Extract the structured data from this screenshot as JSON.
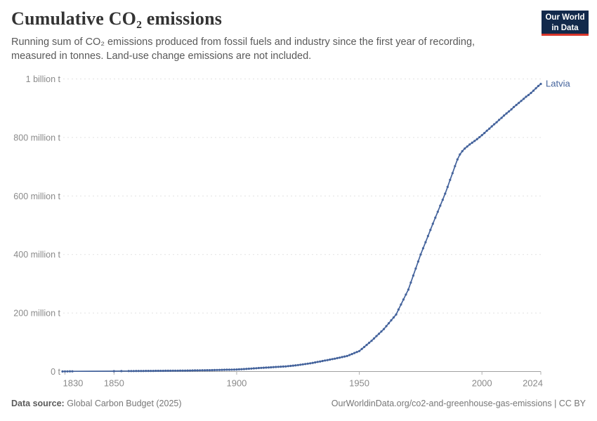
{
  "header": {
    "title": "Cumulative CO₂ emissions",
    "subtitle": "Running sum of CO₂ emissions produced from fossil fuels and industry since the first year of recording, measured in tonnes. Land-use change emissions are not included."
  },
  "logo": {
    "line1": "Our World",
    "line2": "in Data"
  },
  "footer": {
    "source_label": "Data source:",
    "source_value": "Global Carbon Budget (2025)",
    "link": "OurWorldinData.org/co2-and-greenhouse-gas-emissions | CC BY"
  },
  "colors": {
    "line": "#44639c",
    "entity_label": "#44639c",
    "grid": "#e2e2e2",
    "axis": "#a0a0a0",
    "tick": "#b0b0b0",
    "tick_label": "#8a8a8a",
    "logo_bg": "#12294b",
    "logo_red": "#d8352a"
  },
  "chart_data": {
    "type": "line",
    "title": "Cumulative CO₂ emissions",
    "unit": "tonnes",
    "value_unit_of_points": "million tonnes",
    "xlim": [
      1829,
      2024
    ],
    "ylim": [
      0,
      1000
    ],
    "grid": "horizontal dashed",
    "legend_position": "end-of-line label",
    "end_label": "Latvia",
    "xticks": [
      {
        "value": 1830,
        "label": "1830"
      },
      {
        "value": 1850,
        "label": "1850"
      },
      {
        "value": 1900,
        "label": "1900"
      },
      {
        "value": 1950,
        "label": "1950"
      },
      {
        "value": 2000,
        "label": "2000"
      },
      {
        "value": 2024,
        "label": "2024"
      }
    ],
    "yticks": [
      {
        "value": 0,
        "label": "0 t"
      },
      {
        "value": 200,
        "label": "200 million t"
      },
      {
        "value": 400,
        "label": "400 million t"
      },
      {
        "value": 600,
        "label": "600 million t"
      },
      {
        "value": 800,
        "label": "800 million t"
      },
      {
        "value": 1000,
        "label": "1 billion t"
      }
    ],
    "series": [
      {
        "name": "Latvia",
        "color": "#44639c",
        "points": [
          [
            1829,
            0.3
          ],
          [
            1830,
            0.45
          ],
          [
            1831,
            0.55
          ],
          [
            1832,
            0.7
          ],
          [
            1833,
            0.8
          ],
          [
            1850,
            1.2
          ],
          [
            1853,
            1.4
          ],
          [
            1856,
            1.6
          ],
          [
            1857,
            1.68
          ],
          [
            1858,
            1.75
          ],
          [
            1859,
            1.83
          ],
          [
            1860,
            1.9
          ],
          [
            1861,
            1.96
          ],
          [
            1862,
            2.02
          ],
          [
            1863,
            2.08
          ],
          [
            1864,
            2.14
          ],
          [
            1865,
            2.2
          ],
          [
            1866,
            2.26
          ],
          [
            1867,
            2.32
          ],
          [
            1868,
            2.38
          ],
          [
            1869,
            2.44
          ],
          [
            1870,
            2.5
          ],
          [
            1871,
            2.58
          ],
          [
            1872,
            2.66
          ],
          [
            1873,
            2.74
          ],
          [
            1874,
            2.82
          ],
          [
            1875,
            2.9
          ],
          [
            1876,
            2.98
          ],
          [
            1877,
            3.06
          ],
          [
            1878,
            3.14
          ],
          [
            1879,
            3.22
          ],
          [
            1880,
            3.3
          ],
          [
            1881,
            3.45
          ],
          [
            1882,
            3.6
          ],
          [
            1883,
            3.75
          ],
          [
            1884,
            3.9
          ],
          [
            1885,
            4.05
          ],
          [
            1886,
            4.2
          ],
          [
            1887,
            4.35
          ],
          [
            1888,
            4.5
          ],
          [
            1889,
            4.65
          ],
          [
            1890,
            4.8
          ],
          [
            1891,
            5.02
          ],
          [
            1892,
            5.24
          ],
          [
            1893,
            5.46
          ],
          [
            1894,
            5.68
          ],
          [
            1895,
            5.9
          ],
          [
            1896,
            6.12
          ],
          [
            1897,
            6.34
          ],
          [
            1898,
            6.56
          ],
          [
            1899,
            6.78
          ],
          [
            1900,
            7
          ],
          [
            1901,
            7.5
          ],
          [
            1902,
            8
          ],
          [
            1903,
            8.5
          ],
          [
            1904,
            9
          ],
          [
            1905,
            9.5
          ],
          [
            1906,
            10.1
          ],
          [
            1907,
            10.7
          ],
          [
            1908,
            11.3
          ],
          [
            1909,
            11.9
          ],
          [
            1910,
            12.5
          ],
          [
            1911,
            13
          ],
          [
            1912,
            13.5
          ],
          [
            1913,
            14
          ],
          [
            1914,
            14.5
          ],
          [
            1915,
            15
          ],
          [
            1916,
            15.5
          ],
          [
            1917,
            16
          ],
          [
            1918,
            16.5
          ],
          [
            1919,
            17
          ],
          [
            1920,
            17.5
          ],
          [
            1921,
            18.4
          ],
          [
            1922,
            19.3
          ],
          [
            1923,
            20.2
          ],
          [
            1924,
            21.1
          ],
          [
            1925,
            22
          ],
          [
            1926,
            23.2
          ],
          [
            1927,
            24.4
          ],
          [
            1928,
            25.6
          ],
          [
            1929,
            26.8
          ],
          [
            1930,
            28
          ],
          [
            1931,
            29.6
          ],
          [
            1932,
            31.2
          ],
          [
            1933,
            32.8
          ],
          [
            1934,
            34.4
          ],
          [
            1935,
            36
          ],
          [
            1936,
            37.6
          ],
          [
            1937,
            39.2
          ],
          [
            1938,
            40.8
          ],
          [
            1939,
            42.4
          ],
          [
            1940,
            44
          ],
          [
            1941,
            45.8
          ],
          [
            1942,
            47.6
          ],
          [
            1943,
            49.4
          ],
          [
            1944,
            51.2
          ],
          [
            1945,
            53
          ],
          [
            1946,
            56.4
          ],
          [
            1947,
            59.8
          ],
          [
            1948,
            63.2
          ],
          [
            1949,
            66.6
          ],
          [
            1950,
            70
          ],
          [
            1951,
            77
          ],
          [
            1952,
            84
          ],
          [
            1953,
            91
          ],
          [
            1954,
            98
          ],
          [
            1955,
            105
          ],
          [
            1956,
            113
          ],
          [
            1957,
            121
          ],
          [
            1958,
            129
          ],
          [
            1959,
            137
          ],
          [
            1960,
            145
          ],
          [
            1961,
            155
          ],
          [
            1962,
            165
          ],
          [
            1963,
            175
          ],
          [
            1964,
            185
          ],
          [
            1965,
            195
          ],
          [
            1966,
            212
          ],
          [
            1967,
            229
          ],
          [
            1968,
            246
          ],
          [
            1969,
            263
          ],
          [
            1970,
            280
          ],
          [
            1971,
            304
          ],
          [
            1972,
            328
          ],
          [
            1973,
            352
          ],
          [
            1974,
            376
          ],
          [
            1975,
            400
          ],
          [
            1976,
            421
          ],
          [
            1977,
            442
          ],
          [
            1978,
            463
          ],
          [
            1979,
            484
          ],
          [
            1980,
            505
          ],
          [
            1981,
            526
          ],
          [
            1982,
            546
          ],
          [
            1983,
            567
          ],
          [
            1984,
            587
          ],
          [
            1985,
            608
          ],
          [
            1986,
            631
          ],
          [
            1987,
            655
          ],
          [
            1988,
            678
          ],
          [
            1989,
            702
          ],
          [
            1990,
            725
          ],
          [
            1991,
            742
          ],
          [
            1992,
            753
          ],
          [
            1993,
            762
          ],
          [
            1994,
            769
          ],
          [
            1995,
            776
          ],
          [
            1996,
            782
          ],
          [
            1997,
            788
          ],
          [
            1998,
            794
          ],
          [
            1999,
            801
          ],
          [
            2000,
            808
          ],
          [
            2001,
            815
          ],
          [
            2002,
            823
          ],
          [
            2003,
            830
          ],
          [
            2004,
            838
          ],
          [
            2005,
            845
          ],
          [
            2006,
            852
          ],
          [
            2007,
            860
          ],
          [
            2008,
            867
          ],
          [
            2009,
            875
          ],
          [
            2010,
            882
          ],
          [
            2011,
            889
          ],
          [
            2012,
            896
          ],
          [
            2013,
            904
          ],
          [
            2014,
            911
          ],
          [
            2015,
            918
          ],
          [
            2016,
            925
          ],
          [
            2017,
            932
          ],
          [
            2018,
            939
          ],
          [
            2019,
            945
          ],
          [
            2020,
            952
          ],
          [
            2021,
            960
          ],
          [
            2022,
            968
          ],
          [
            2023,
            976
          ],
          [
            2024,
            983
          ]
        ]
      }
    ]
  }
}
